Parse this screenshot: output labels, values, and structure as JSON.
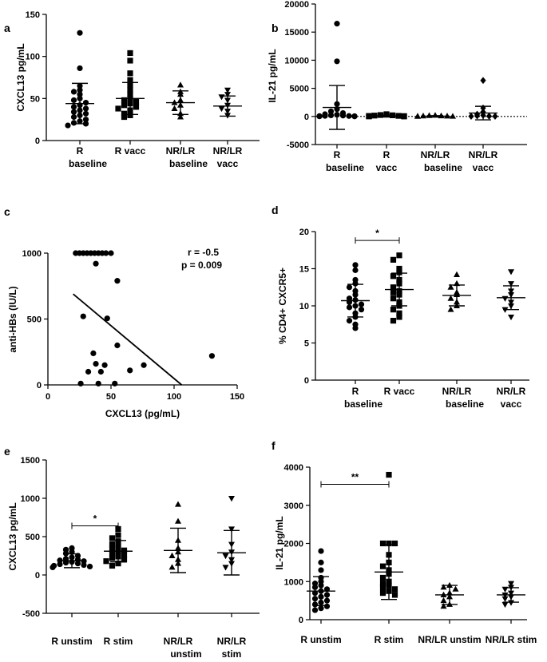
{
  "figure": {
    "panels": [
      {
        "id": "a",
        "label": "a"
      },
      {
        "id": "b",
        "label": "b"
      },
      {
        "id": "c",
        "label": "c"
      },
      {
        "id": "d",
        "label": "d"
      },
      {
        "id": "e",
        "label": "e"
      },
      {
        "id": "f",
        "label": "f"
      }
    ]
  },
  "chart_data": [
    {
      "id": "a",
      "type": "scatter",
      "title": "",
      "ylabel": "CXCL13 pg/mL",
      "ylim": [
        0,
        150
      ],
      "yticks": [
        0,
        50,
        100,
        150
      ],
      "categories": [
        [
          "R",
          "baseline"
        ],
        [
          "R vacc"
        ],
        [
          "NR/LR",
          "baseline"
        ],
        [
          "NR/LR",
          "vacc"
        ]
      ],
      "markers": [
        "circle",
        "square",
        "triangle",
        "triangle-down"
      ],
      "groups": [
        {
          "mean": 44,
          "sd": 24,
          "values": [
            128,
            86,
            65,
            60,
            58,
            55,
            50,
            48,
            45,
            42,
            40,
            38,
            36,
            34,
            32,
            30,
            28,
            25,
            23,
            21,
            20,
            18
          ]
        },
        {
          "mean": 50,
          "sd": 19,
          "values": [
            104,
            95,
            80,
            72,
            66,
            60,
            55,
            50,
            48,
            46,
            44,
            42,
            40,
            38,
            36,
            32,
            30,
            28
          ]
        },
        {
          "mean": 45,
          "sd": 14,
          "values": [
            66,
            58,
            55,
            48,
            45,
            42,
            38,
            32,
            28
          ]
        },
        {
          "mean": 41,
          "sd": 12,
          "values": [
            60,
            55,
            52,
            48,
            42,
            38,
            35,
            30
          ]
        }
      ],
      "annotations": []
    },
    {
      "id": "b",
      "type": "scatter",
      "title": "",
      "ylabel": "IL-21 pg/mL",
      "ylim": [
        -5000,
        20000
      ],
      "yticks": [
        -5000,
        0,
        5000,
        10000,
        15000,
        20000
      ],
      "zero_line": "dotted",
      "categories": [
        [
          "R",
          "baseline"
        ],
        [
          "R",
          "vacc"
        ],
        [
          "NR/LR",
          "baseline"
        ],
        [
          "NR/LR",
          "vacc"
        ]
      ],
      "markers": [
        "circle",
        "square",
        "triangle",
        "diamond"
      ],
      "groups": [
        {
          "mean": 1600,
          "sd": 3900,
          "values": [
            16500,
            9800,
            2200,
            1300,
            900,
            600,
            400,
            300,
            200,
            150,
            100,
            80,
            60,
            40,
            20,
            10
          ]
        },
        {
          "mean": 100,
          "sd": 150,
          "values": [
            400,
            300,
            250,
            200,
            150,
            100,
            80,
            60,
            40,
            20,
            10,
            5
          ]
        },
        {
          "mean": 50,
          "sd": 80,
          "values": [
            200,
            150,
            100,
            80,
            60,
            40,
            20,
            10
          ]
        },
        {
          "mean": 600,
          "sd": 1200,
          "values": [
            6400,
            1500,
            800,
            400,
            200,
            100,
            50,
            30,
            20
          ]
        }
      ],
      "annotations": []
    },
    {
      "id": "c",
      "type": "scatter",
      "title": "",
      "xlabel": "CXCL13 (pg/mL)",
      "ylabel": "anti-HBs (IU/L)",
      "xlim": [
        0,
        150
      ],
      "ylim": [
        0,
        1000
      ],
      "xticks": [
        0,
        50,
        100,
        150
      ],
      "yticks": [
        0,
        500,
        1000
      ],
      "points": [
        [
          22,
          1000
        ],
        [
          25,
          1000
        ],
        [
          28,
          1000
        ],
        [
          31,
          1000
        ],
        [
          34,
          1000
        ],
        [
          37,
          1000
        ],
        [
          40,
          1000
        ],
        [
          43,
          1000
        ],
        [
          46,
          1000
        ],
        [
          50,
          1000
        ],
        [
          38,
          920
        ],
        [
          55,
          790
        ],
        [
          28,
          520
        ],
        [
          47,
          505
        ],
        [
          55,
          300
        ],
        [
          36,
          240
        ],
        [
          130,
          220
        ],
        [
          38,
          160
        ],
        [
          45,
          150
        ],
        [
          76,
          150
        ],
        [
          65,
          110
        ],
        [
          32,
          100
        ],
        [
          42,
          100
        ],
        [
          26,
          10
        ],
        [
          40,
          10
        ],
        [
          53,
          10
        ]
      ],
      "regression": {
        "x": [
          20,
          106
        ],
        "y": [
          690,
          0
        ]
      },
      "annotations": [
        "r = -0.5",
        "p = 0.009"
      ]
    },
    {
      "id": "d",
      "type": "scatter",
      "title": "",
      "ylabel": "% CD4+ CXCR5+",
      "ylim": [
        0,
        20
      ],
      "yticks": [
        0,
        5,
        10,
        15,
        20
      ],
      "categories": [
        [
          "R",
          "baseline"
        ],
        [
          "R vacc"
        ],
        [
          "NR/LR",
          "baseline"
        ],
        [
          "NR/LR",
          "vacc"
        ]
      ],
      "markers": [
        "circle",
        "square",
        "triangle",
        "triangle-down"
      ],
      "groups": [
        {
          "mean": 10.7,
          "sd": 2.2,
          "values": [
            15.5,
            14.8,
            13.5,
            13,
            12.5,
            12,
            11.5,
            11,
            10.8,
            10.5,
            10.2,
            10,
            9.8,
            9.5,
            9,
            8.5,
            8,
            7.5,
            7
          ]
        },
        {
          "mean": 12.2,
          "sd": 2.2,
          "values": [
            16.8,
            16.2,
            15,
            14.5,
            14,
            13.5,
            13,
            12.5,
            12,
            11.8,
            11.5,
            11,
            10.5,
            10,
            9.5,
            9,
            8.5,
            8
          ]
        },
        {
          "mean": 11.4,
          "sd": 1.4,
          "values": [
            14.2,
            13,
            12.5,
            11.8,
            11.5,
            11,
            10.5,
            10,
            9.5
          ]
        },
        {
          "mean": 11.1,
          "sd": 1.6,
          "values": [
            14.6,
            13,
            12,
            11.5,
            11,
            10.5,
            10,
            9.5,
            8.5
          ]
        }
      ],
      "annotations": [
        {
          "text": "*",
          "from": 0,
          "to": 1,
          "y": 18.8
        }
      ]
    },
    {
      "id": "e",
      "type": "scatter",
      "title": "",
      "ylabel": "CXCL13 pg/mL",
      "ylim": [
        -500,
        1500
      ],
      "yticks": [
        -500,
        0,
        500,
        1000,
        1500
      ],
      "categories": [
        [
          "R unstim"
        ],
        [
          "R stim"
        ],
        [
          "NR/LR",
          "unstim"
        ],
        [
          "NR/LR",
          "stim"
        ]
      ],
      "markers": [
        "circle",
        "square",
        "triangle",
        "triangle-down"
      ],
      "groups": [
        {
          "mean": 185,
          "sd": 90,
          "values": [
            350,
            330,
            300,
            280,
            250,
            230,
            210,
            200,
            190,
            180,
            170,
            160,
            150,
            140,
            130,
            120,
            110,
            100
          ]
        },
        {
          "mean": 310,
          "sd": 140,
          "values": [
            600,
            520,
            480,
            440,
            400,
            370,
            340,
            320,
            300,
            280,
            260,
            240,
            220,
            200,
            180,
            150,
            120
          ]
        },
        {
          "mean": 320,
          "sd": 290,
          "values": [
            920,
            700,
            450,
            350,
            300,
            250,
            200,
            150,
            100
          ]
        },
        {
          "mean": 290,
          "sd": 290,
          "values": [
            1000,
            600,
            400,
            300,
            250,
            200,
            150,
            100
          ]
        }
      ],
      "annotations": [
        {
          "text": "*",
          "from": 0,
          "to": 1,
          "y": 640
        }
      ]
    },
    {
      "id": "f",
      "type": "scatter",
      "title": "",
      "ylabel": "IL-21 pg/mL",
      "ylim": [
        0,
        4000
      ],
      "yticks": [
        0,
        1000,
        2000,
        3000,
        4000
      ],
      "categories": [
        [
          "R unstim"
        ],
        [
          "R stim"
        ],
        [
          "NR/LR unstim"
        ],
        [
          "NR/LR stim"
        ]
      ],
      "markers": [
        "circle",
        "square",
        "triangle",
        "triangle-down"
      ],
      "groups": [
        {
          "mean": 750,
          "sd": 380,
          "values": [
            1800,
            1500,
            1300,
            1100,
            1000,
            950,
            900,
            850,
            800,
            750,
            700,
            650,
            600,
            550,
            500,
            450,
            400,
            350,
            300,
            250
          ]
        },
        {
          "mean": 1250,
          "sd": 720,
          "values": [
            3800,
            2000,
            2000,
            2000,
            1700,
            1500,
            1400,
            1300,
            1200,
            1100,
            1000,
            950,
            900,
            850,
            800,
            750,
            700,
            650
          ]
        },
        {
          "mean": 650,
          "sd": 250,
          "values": [
            900,
            850,
            800,
            700,
            650,
            600,
            500,
            400,
            350
          ]
        },
        {
          "mean": 650,
          "sd": 190,
          "values": [
            950,
            850,
            800,
            700,
            650,
            600,
            550,
            450,
            400
          ]
        }
      ],
      "annotations": [
        {
          "text": "**",
          "from": 0,
          "to": 1,
          "y": 3550
        }
      ]
    }
  ]
}
